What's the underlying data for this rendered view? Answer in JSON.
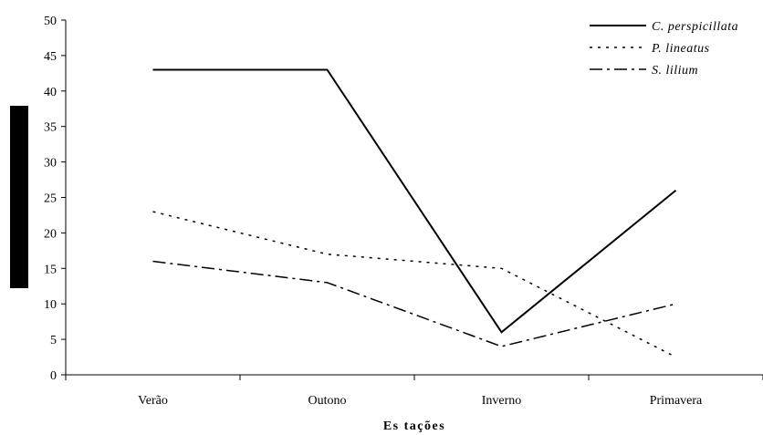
{
  "chart_data": {
    "type": "line",
    "categories": [
      "Verão",
      "Outono",
      "Inverno",
      "Primavera"
    ],
    "series": [
      {
        "name": "C. perspicillata",
        "values": [
          43,
          43,
          6,
          26
        ],
        "style": "solid"
      },
      {
        "name": "P. lineatus",
        "values": [
          23,
          17,
          15,
          2.5
        ],
        "style": "dotted"
      },
      {
        "name": "S. lilium",
        "values": [
          16,
          13,
          4,
          10
        ],
        "style": "dashdot"
      }
    ],
    "title": "",
    "xlabel": "Es tações",
    "ylabel": "",
    "ylim": [
      0,
      50
    ],
    "yticks": [
      0,
      5,
      10,
      15,
      20,
      25,
      30,
      35,
      40,
      45,
      50
    ],
    "ytick_labels": [
      "0",
      "5",
      "10",
      "15",
      "20",
      "25",
      "30",
      "35",
      "40",
      "45",
      "50"
    ],
    "grid": false,
    "legend_position": "top-right",
    "line_color": "#000000"
  }
}
